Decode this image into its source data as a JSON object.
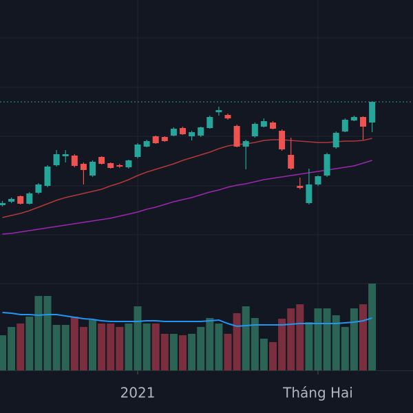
{
  "chart_data": {
    "type": "candlestick",
    "categories": [
      null,
      null,
      null,
      null,
      null,
      null,
      null,
      null,
      null,
      null,
      null,
      null,
      null,
      null,
      null,
      "2021",
      null,
      null,
      null,
      null,
      null,
      null,
      null,
      null,
      null,
      null,
      null,
      null,
      null,
      null,
      null,
      null,
      null,
      null,
      null,
      "Tháng Hai",
      null,
      null,
      null,
      null,
      null,
      null
    ],
    "open": [
      302,
      307,
      315,
      304,
      320,
      330,
      360,
      373,
      374,
      362,
      345,
      372,
      363,
      360,
      357,
      372,
      387,
      402,
      401,
      403,
      414,
      402,
      403,
      414,
      437,
      433,
      417,
      387,
      402,
      416,
      422,
      410,
      375,
      330,
      305,
      332,
      345,
      386,
      409,
      425,
      430,
      422
    ],
    "high": [
      308,
      313,
      316,
      321,
      334,
      360,
      382,
      382,
      376,
      364,
      367,
      373,
      364,
      362,
      368,
      392,
      397,
      403,
      402,
      415,
      416,
      410,
      416,
      432,
      445,
      435,
      419,
      397,
      422,
      428,
      424,
      412,
      400,
      342,
      355,
      345,
      378,
      409,
      428,
      432,
      431,
      453
    ],
    "low": [
      300,
      305,
      303,
      303,
      318,
      328,
      358,
      364,
      357,
      332,
      343,
      361,
      355,
      356,
      355,
      370,
      386,
      391,
      394,
      402,
      404,
      396,
      401,
      413,
      432,
      426,
      386,
      354,
      400,
      415,
      412,
      381,
      353,
      325,
      303,
      330,
      343,
      384,
      408,
      424,
      397,
      408
    ],
    "close": [
      305,
      311,
      304,
      319,
      332,
      358,
      376,
      376,
      359,
      353,
      365,
      362,
      356,
      358,
      367,
      390,
      395,
      392,
      395,
      413,
      405,
      408,
      415,
      430,
      440,
      428,
      387,
      395,
      420,
      424,
      413,
      383,
      355,
      327,
      332,
      344,
      376,
      407,
      426,
      430,
      416,
      452
    ],
    "volume": [
      51,
      63,
      68,
      78,
      108,
      108,
      66,
      66,
      78,
      63,
      73,
      68,
      68,
      63,
      68,
      93,
      68,
      68,
      53,
      53,
      51,
      53,
      63,
      76,
      68,
      53,
      83,
      93,
      76,
      46,
      41,
      75,
      90,
      96,
      70,
      90,
      90,
      80,
      63,
      90,
      96,
      126
    ],
    "moving_averages": [
      {
        "color": "#b2383b",
        "values": [
          284,
          287,
          290,
          294,
          299,
          304,
          309,
          313,
          316,
          319,
          322,
          325,
          330,
          334,
          339,
          345,
          350,
          354,
          358,
          362,
          367,
          371,
          375,
          379,
          384,
          388,
          390,
          391,
          393,
          396,
          397,
          397,
          396,
          395,
          394,
          393,
          393,
          394,
          395,
          395,
          396,
          399
        ]
      },
      {
        "color": "#9c27b0",
        "values": [
          260,
          261,
          263,
          265,
          267,
          269,
          271,
          273,
          275,
          277,
          279,
          281,
          283,
          286,
          289,
          292,
          296,
          299,
          303,
          307,
          310,
          313,
          317,
          321,
          324,
          328,
          331,
          333,
          336,
          339,
          341,
          343,
          345,
          347,
          349,
          351,
          353,
          355,
          357,
          359,
          363,
          367
        ]
      }
    ],
    "volume_ma": {
      "color": "#2196f3",
      "values": [
        84,
        83,
        81,
        81,
        80,
        81,
        81,
        79,
        77,
        75,
        74,
        72,
        71,
        71,
        71,
        71,
        72,
        72,
        71,
        71,
        71,
        71,
        71,
        72,
        73,
        68,
        64,
        65,
        66,
        66,
        66,
        66,
        67,
        68,
        68,
        68,
        68,
        68,
        69,
        70,
        72,
        76
      ]
    },
    "ylim": [
      0,
      600
    ],
    "yticks": [
      188,
      259,
      330,
      402,
      473,
      545
    ],
    "volume_lim": [
      0,
      538
    ],
    "grid": true,
    "up_color": "#26a69a",
    "down_color": "#ef5350",
    "volume_up_color": "#2b6355",
    "volume_down_color": "#7b2e3d",
    "last_price_color": "#26a69a"
  }
}
